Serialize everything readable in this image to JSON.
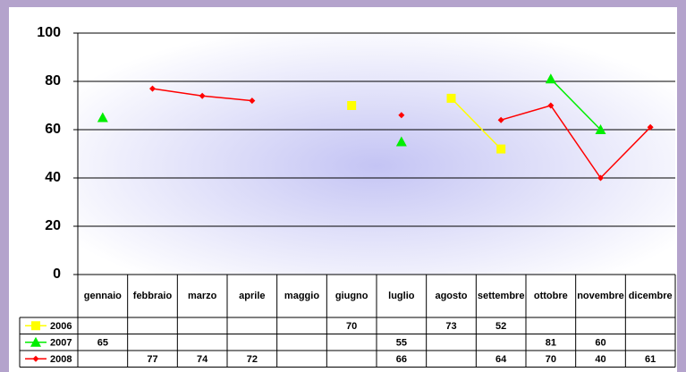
{
  "chart_data": {
    "type": "line",
    "categories": [
      "gennaio",
      "febbraio",
      "marzo",
      "aprile",
      "maggio",
      "giugno",
      "luglio",
      "agosto",
      "settembre",
      "ottobre",
      "novembre",
      "dicembre"
    ],
    "series": [
      {
        "name": "2006",
        "color": "#ffff00",
        "marker": "square",
        "values": [
          null,
          null,
          null,
          null,
          null,
          70,
          null,
          73,
          52,
          null,
          null,
          null
        ]
      },
      {
        "name": "2007",
        "color": "#00ee00",
        "marker": "triangle",
        "values": [
          65,
          null,
          null,
          null,
          null,
          null,
          55,
          null,
          null,
          81,
          60,
          null
        ]
      },
      {
        "name": "2008",
        "color": "#ff0000",
        "marker": "diamond",
        "values": [
          null,
          77,
          74,
          72,
          null,
          null,
          66,
          null,
          64,
          70,
          40,
          61
        ]
      }
    ],
    "ylim": [
      0,
      100
    ],
    "yticks": [
      0,
      20,
      40,
      60,
      80,
      100
    ],
    "grid": true
  }
}
